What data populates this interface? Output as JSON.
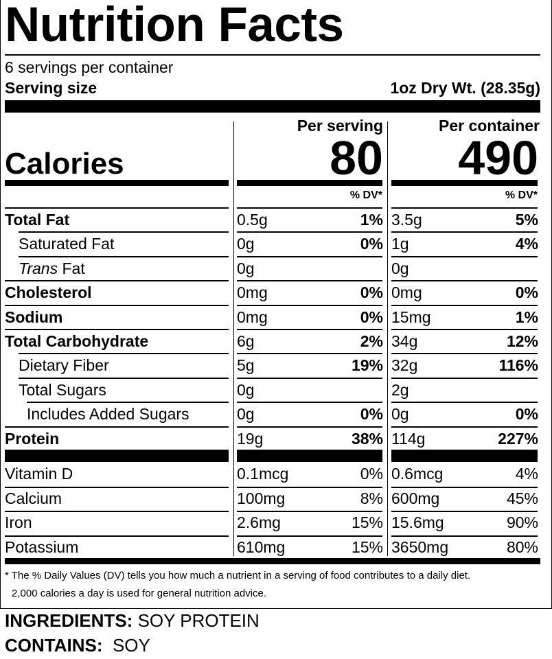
{
  "title": "Nutrition Facts",
  "servings_per_container": "6 servings per container",
  "serving_size_label": "Serving size",
  "serving_size_value": "1oz Dry Wt. (28.35g)",
  "calories_label": "Calories",
  "columns": [
    {
      "header": "Per serving",
      "calories": "80",
      "dv_label": "% DV*"
    },
    {
      "header": "Per container",
      "calories": "490",
      "dv_label": "% DV*"
    }
  ],
  "nutrients": [
    {
      "name": "Total Fat",
      "bold": true,
      "indent": 0,
      "serving": "0.5g",
      "serving_dv": "1%",
      "container": "3.5g",
      "container_dv": "5%"
    },
    {
      "name": "Saturated Fat",
      "bold": false,
      "indent": 1,
      "serving": "0g",
      "serving_dv": "0%",
      "container": "1g",
      "container_dv": "4%"
    },
    {
      "name_italic": "Trans",
      "name": " Fat",
      "bold": false,
      "indent": 1,
      "serving": "0g",
      "serving_dv": "",
      "container": "0g",
      "container_dv": ""
    },
    {
      "name": "Cholesterol",
      "bold": true,
      "indent": 0,
      "serving": "0mg",
      "serving_dv": "0%",
      "container": "0mg",
      "container_dv": "0%"
    },
    {
      "name": "Sodium",
      "bold": true,
      "indent": 0,
      "serving": "0mg",
      "serving_dv": "0%",
      "container": "15mg",
      "container_dv": "1%"
    },
    {
      "name": "Total Carbohydrate",
      "bold": true,
      "indent": 0,
      "serving": "6g",
      "serving_dv": "2%",
      "container": "34g",
      "container_dv": "12%"
    },
    {
      "name": "Dietary Fiber",
      "bold": false,
      "indent": 1,
      "serving": "5g",
      "serving_dv": "19%",
      "container": "32g",
      "container_dv": "116%"
    },
    {
      "name": "Total Sugars",
      "bold": false,
      "indent": 1,
      "serving": "0g",
      "serving_dv": "",
      "container": "2g",
      "container_dv": ""
    },
    {
      "name": "Includes Added Sugars",
      "bold": false,
      "indent": 2,
      "serving": "0g",
      "serving_dv": "0%",
      "container": "0g",
      "container_dv": "0%"
    },
    {
      "name": "Protein",
      "bold": true,
      "indent": 0,
      "serving": "19g",
      "serving_dv": "38%",
      "container": "114g",
      "container_dv": "227%"
    }
  ],
  "vitamins": [
    {
      "name": "Vitamin D",
      "serving": "0.1mcg",
      "serving_dv": "0%",
      "container": "0.6mcg",
      "container_dv": "4%"
    },
    {
      "name": "Calcium",
      "serving": "100mg",
      "serving_dv": "8%",
      "container": "600mg",
      "container_dv": "45%"
    },
    {
      "name": "Iron",
      "serving": "2.6mg",
      "serving_dv": "15%",
      "container": "15.6mg",
      "container_dv": "90%"
    },
    {
      "name": "Potassium",
      "serving": "610mg",
      "serving_dv": "15%",
      "container": "3650mg",
      "container_dv": "80%"
    }
  ],
  "footnote_line1": "* The % Daily Values (DV) tells you how much a nutrient in a serving of food contributes to a daily diet.",
  "footnote_line2": "2,000 calories a day is used for general nutrition advice.",
  "ingredients_label": "INGREDIENTS:",
  "ingredients_value": "SOY PROTEIN",
  "contains_label": "CONTAINS:",
  "contains_value": "SOY"
}
